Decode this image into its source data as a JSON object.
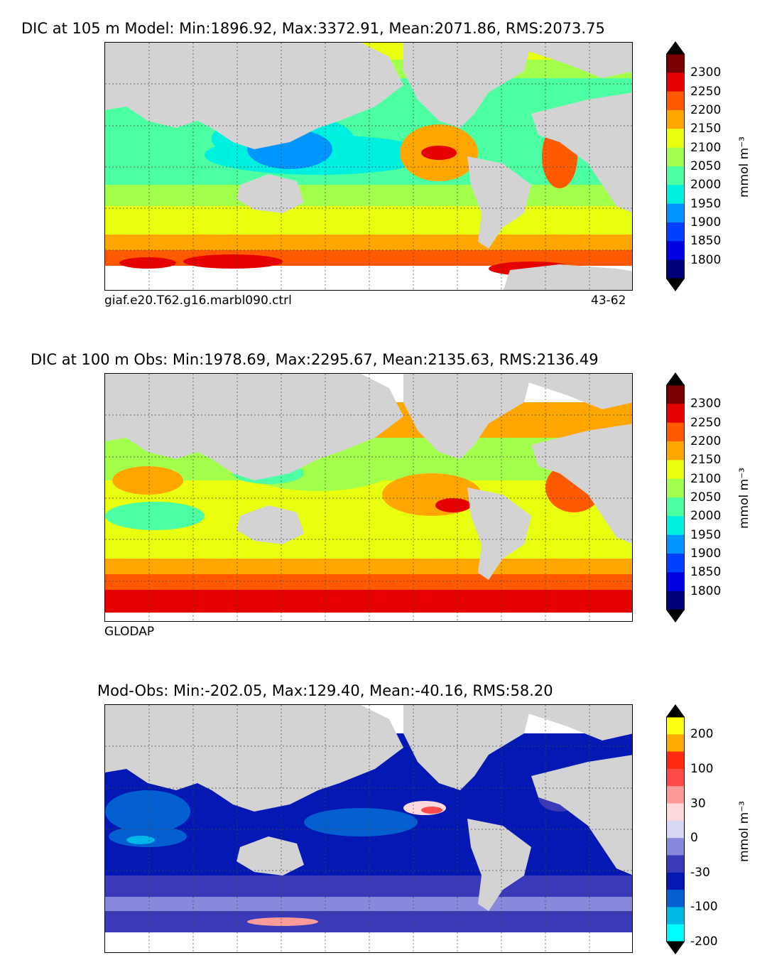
{
  "panels": [
    {
      "title": "DIC at 105 m Model: Min:1896.92, Max:3372.91, Mean:2071.86, RMS:2073.75",
      "left_caption": "giaf.e20.T62.g16.marbl090.ctrl",
      "right_caption": "43-62"
    },
    {
      "title": "DIC at 100 m Obs: Min:1978.69, Max:2295.67, Mean:2135.63, RMS:2136.49",
      "left_caption": "GLODAP",
      "right_caption": ""
    },
    {
      "title": "Mod-Obs: Min:-202.05, Max:129.40, Mean:-40.16, RMS:58.20",
      "left_caption": "",
      "right_caption": ""
    }
  ],
  "colorbars": {
    "dic": {
      "unit": "mmol m⁻³",
      "ticks": [
        "2300",
        "2250",
        "2200",
        "2150",
        "2100",
        "2050",
        "2000",
        "1950",
        "1900",
        "1850",
        "1800"
      ],
      "colors": [
        "#7a0000",
        "#e40000",
        "#ff5a00",
        "#ffa600",
        "#e8ff10",
        "#a2ff4c",
        "#4cffa2",
        "#00f0e0",
        "#0096ff",
        "#0040ff",
        "#0000e0",
        "#00007a"
      ]
    },
    "diff": {
      "unit": "mmol m⁻³",
      "ticks": [
        "200",
        "100",
        "30",
        "0",
        "-30",
        "-100",
        "-200"
      ],
      "colors": [
        "#ffff10",
        "#ffaa00",
        "#ff2a10",
        "#ff4a4a",
        "#ff9a9a",
        "#ffd8dc",
        "#d8d8f4",
        "#8888dc",
        "#3a3ab8",
        "#0418b4",
        "#0460d0",
        "#00b8e8",
        "#00ffff"
      ]
    }
  },
  "colors": {
    "land": "#d3d3d3",
    "no_data": "#ffffff"
  }
}
